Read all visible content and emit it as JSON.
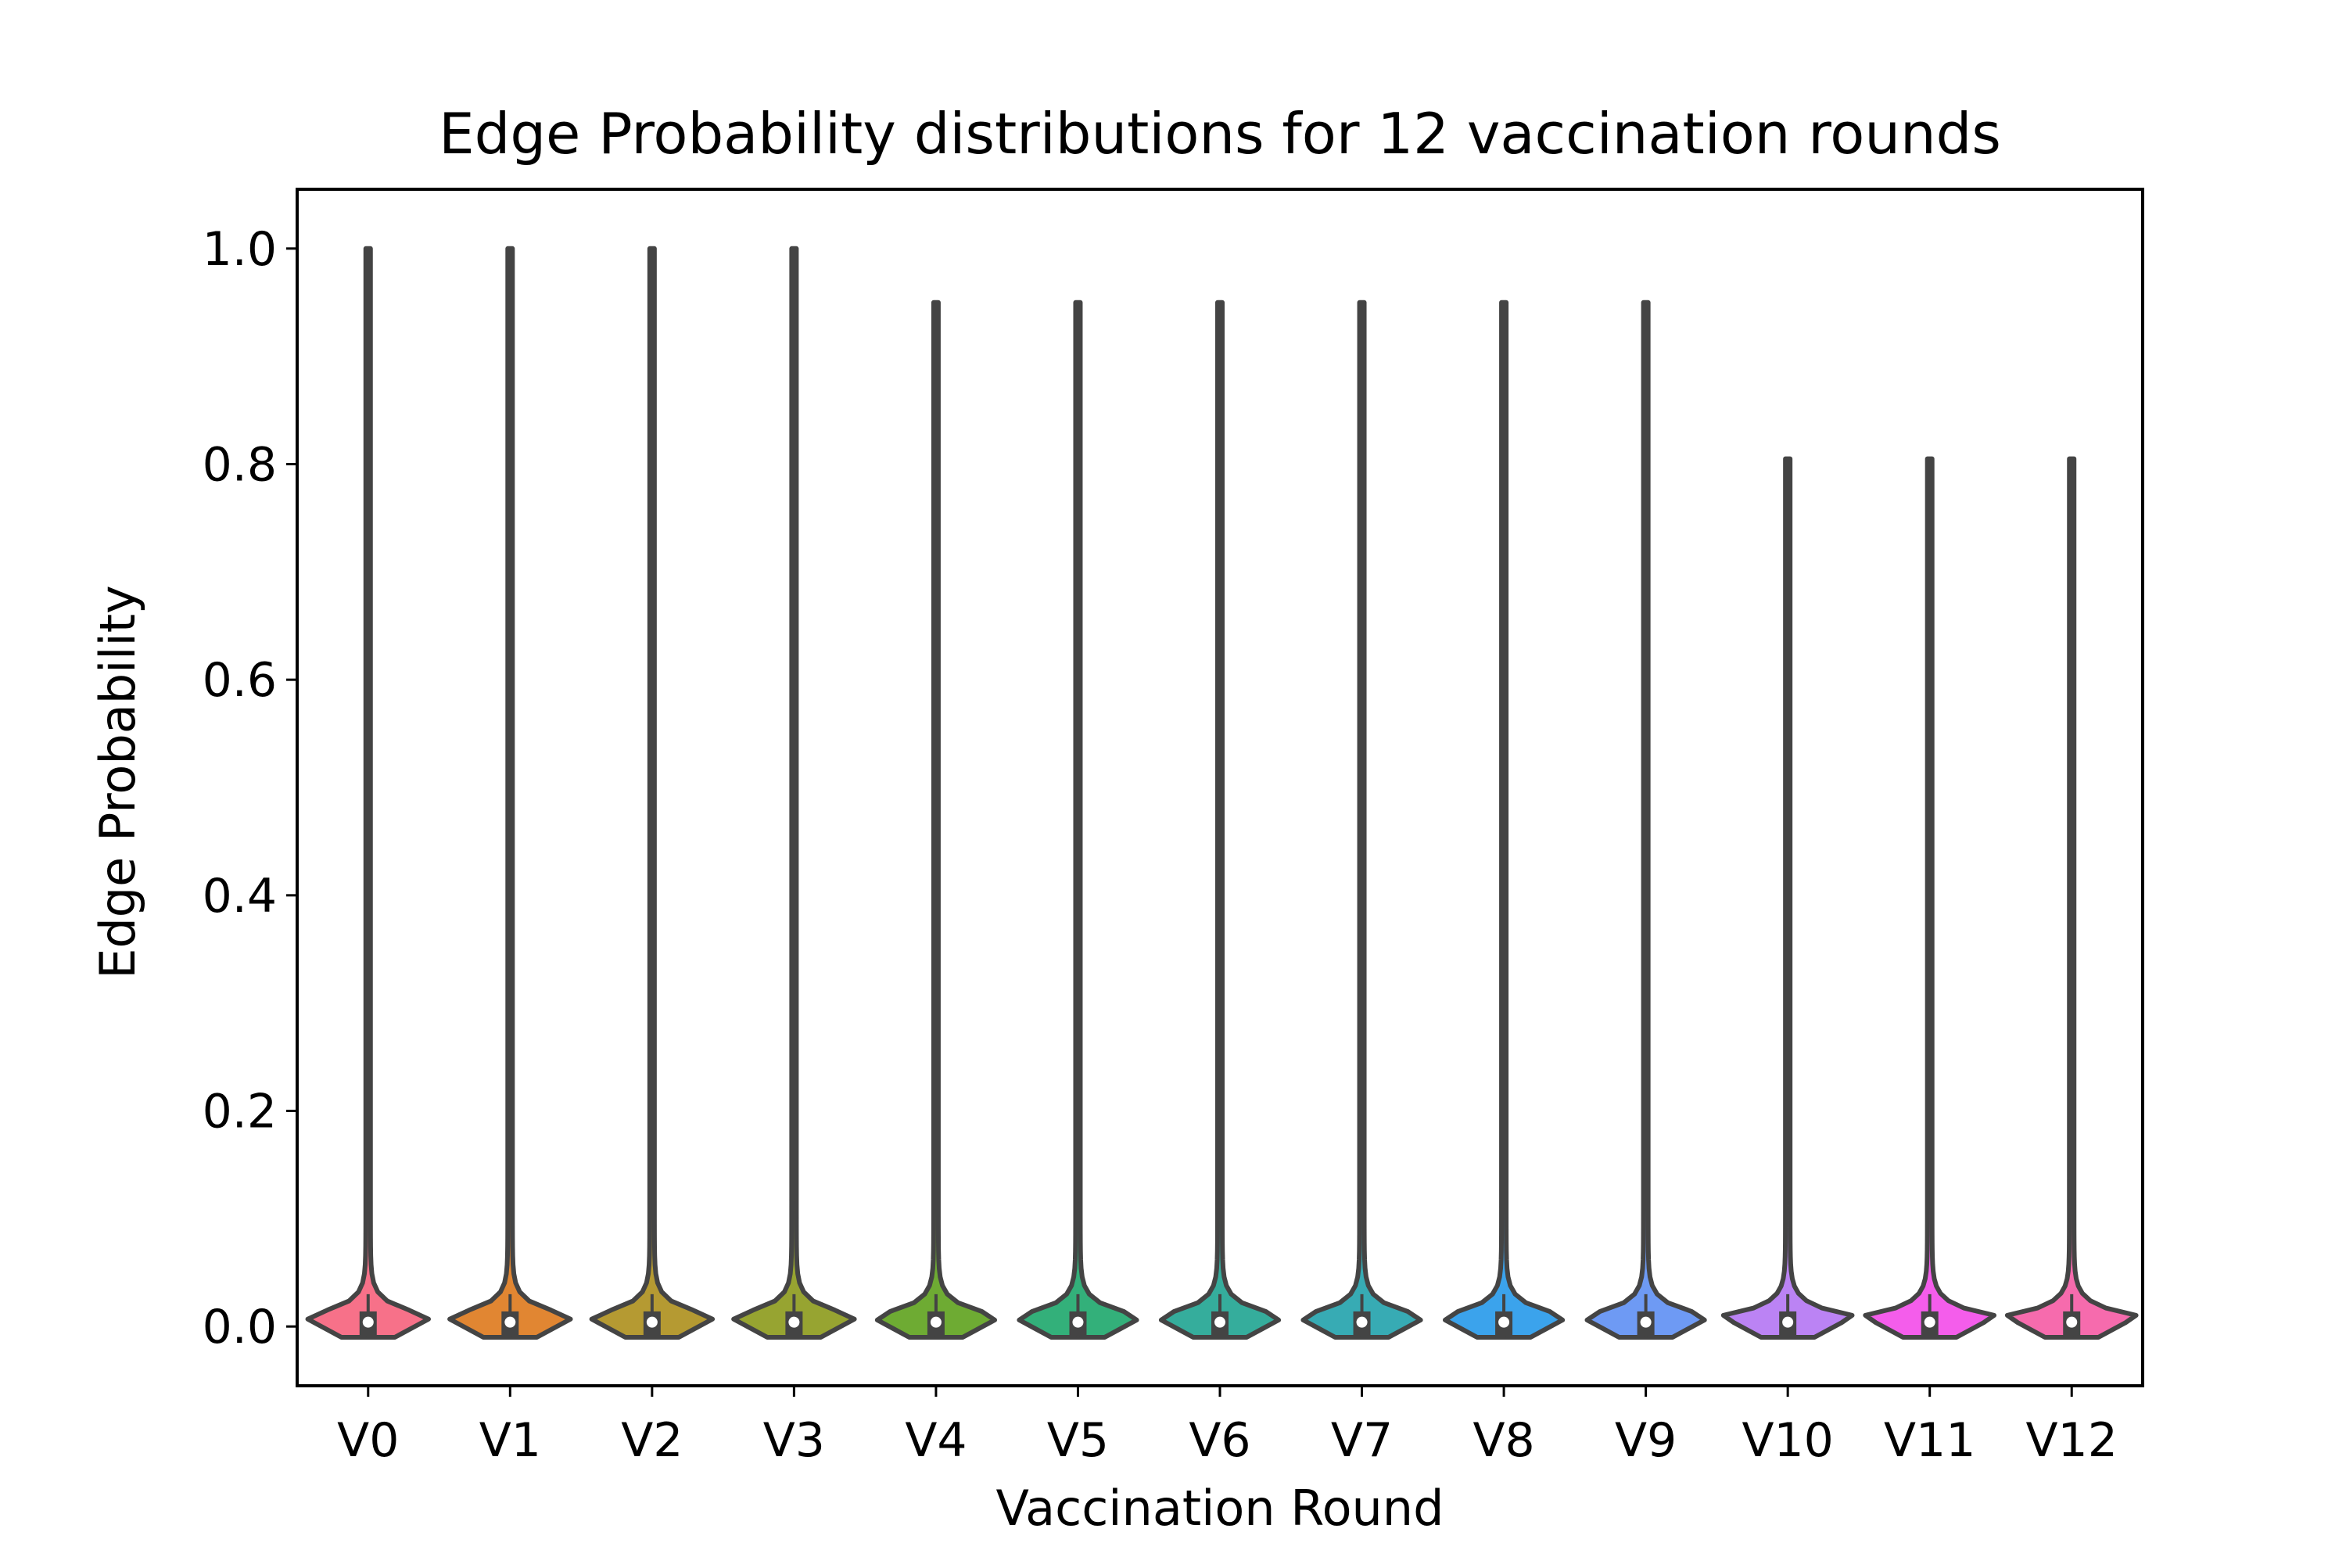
{
  "chart_data": {
    "type": "violin",
    "title": "Edge Probability distributions for 12 vaccination rounds",
    "xlabel": "Vaccination Round",
    "ylabel": "Edge Probability",
    "ylim": [
      -0.055,
      1.055
    ],
    "yticks": [
      "0.0",
      "0.2",
      "0.4",
      "0.6",
      "0.8",
      "1.0"
    ],
    "ytick_values": [
      0.0,
      0.2,
      0.4,
      0.6,
      0.8,
      1.0
    ],
    "categories": [
      "V0",
      "V1",
      "V2",
      "V3",
      "V4",
      "V5",
      "V6",
      "V7",
      "V8",
      "V9",
      "V10",
      "V11",
      "V12"
    ],
    "series": [
      {
        "category": "V0",
        "max": 1.0,
        "min": -0.01,
        "mode": 0.01,
        "median": 0.004,
        "color": "#f77189"
      },
      {
        "category": "V1",
        "max": 1.0,
        "min": -0.01,
        "mode": 0.01,
        "median": 0.004,
        "color": "#e18632"
      },
      {
        "category": "V2",
        "max": 1.0,
        "min": -0.01,
        "mode": 0.01,
        "median": 0.004,
        "color": "#b59a32"
      },
      {
        "category": "V3",
        "max": 1.0,
        "min": -0.01,
        "mode": 0.01,
        "median": 0.004,
        "color": "#97a431"
      },
      {
        "category": "V4",
        "max": 0.95,
        "min": -0.01,
        "mode": 0.01,
        "median": 0.004,
        "color": "#6eab33"
      },
      {
        "category": "V5",
        "max": 0.95,
        "min": -0.01,
        "mode": 0.01,
        "median": 0.004,
        "color": "#33b07a"
      },
      {
        "category": "V6",
        "max": 0.95,
        "min": -0.01,
        "mode": 0.01,
        "median": 0.004,
        "color": "#35ad9c"
      },
      {
        "category": "V7",
        "max": 0.95,
        "min": -0.01,
        "mode": 0.01,
        "median": 0.004,
        "color": "#37abb4"
      },
      {
        "category": "V8",
        "max": 0.95,
        "min": -0.01,
        "mode": 0.01,
        "median": 0.004,
        "color": "#3ba3ec"
      },
      {
        "category": "V9",
        "max": 0.95,
        "min": -0.01,
        "mode": 0.01,
        "median": 0.004,
        "color": "#6e9af4"
      },
      {
        "category": "V10",
        "max": 0.805,
        "min": -0.01,
        "mode": 0.01,
        "median": 0.004,
        "color": "#bb83f4"
      },
      {
        "category": "V11",
        "max": 0.805,
        "min": -0.01,
        "mode": 0.01,
        "median": 0.004,
        "color": "#f45deb"
      },
      {
        "category": "V12",
        "max": 0.805,
        "min": -0.01,
        "mode": 0.01,
        "median": 0.004,
        "color": "#f66bad"
      }
    ],
    "colors": {
      "outline": "#444444",
      "axes": "#000000",
      "median_dot": "#ffffff"
    }
  }
}
